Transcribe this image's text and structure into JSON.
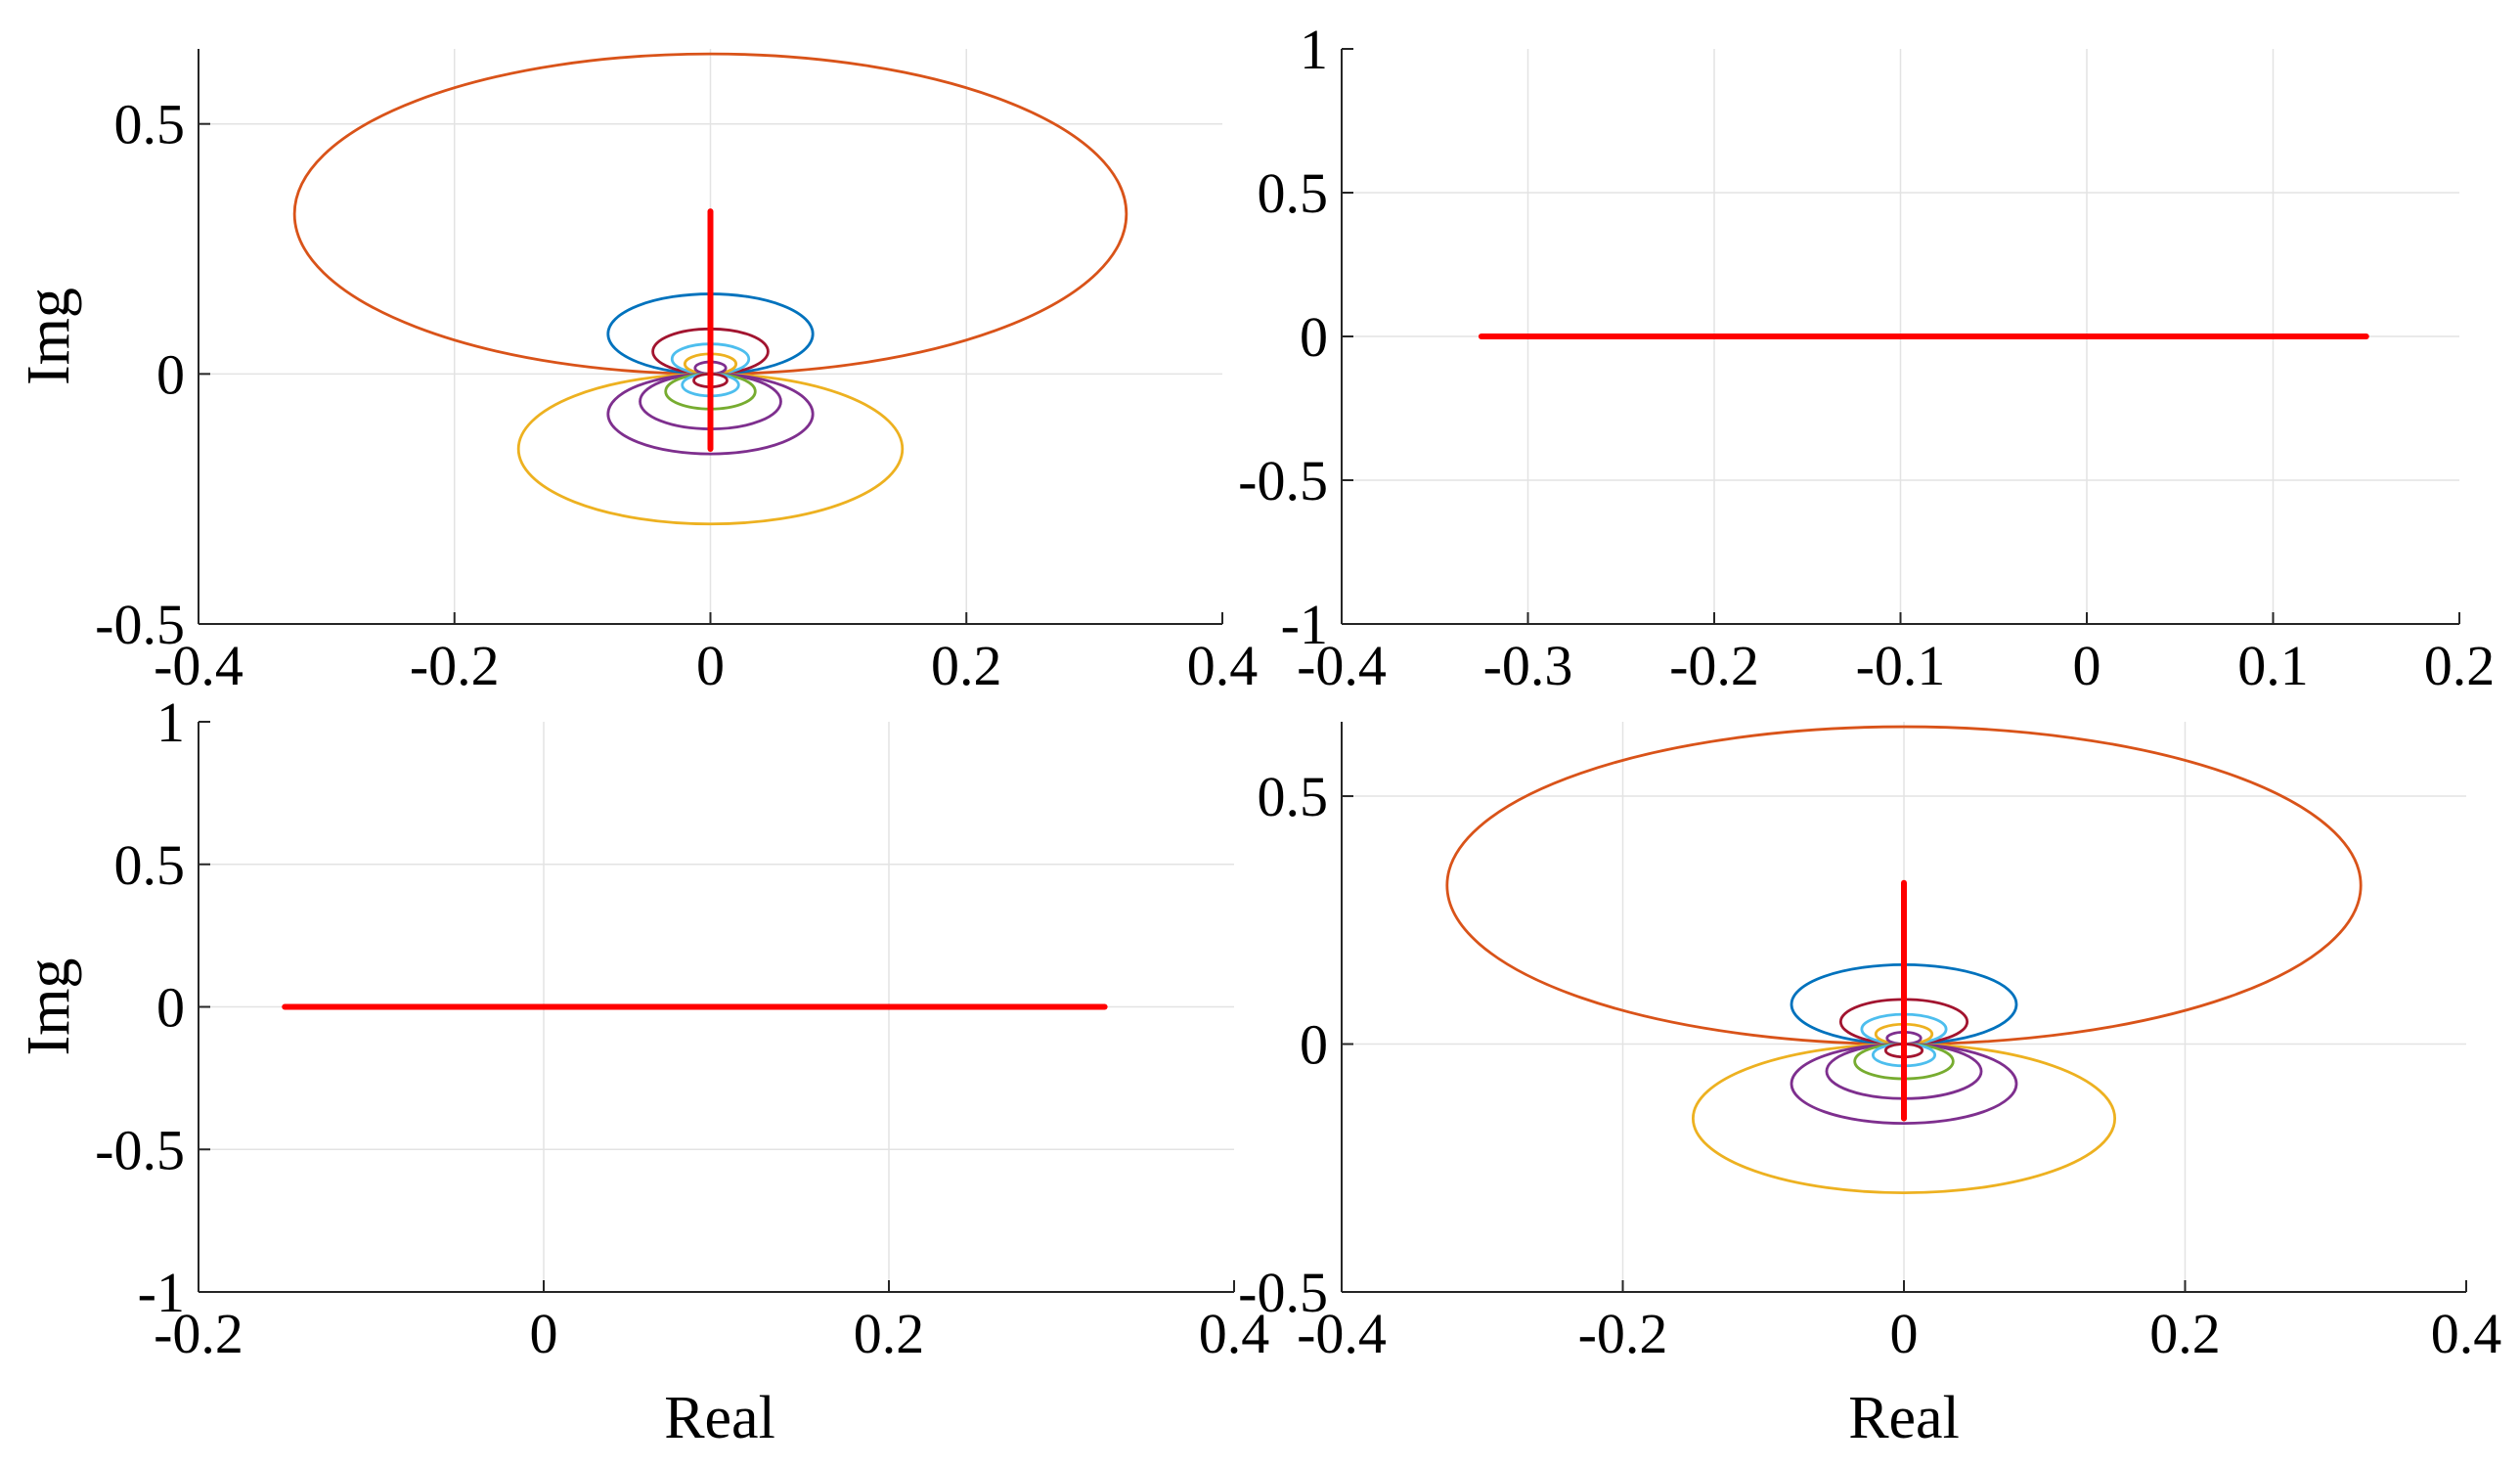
{
  "colors": {
    "frame": "#262626",
    "grid": "#e3e3e3",
    "locus_line": "#ff0000",
    "palette": [
      "#0072bd",
      "#d95319",
      "#edb120",
      "#7e2f8e",
      "#77ac30",
      "#4dbeee",
      "#a2142f"
    ]
  },
  "chart_data": [
    {
      "type": "line",
      "position": "top-left",
      "xlim": [
        -0.4,
        0.4
      ],
      "ylim": [
        -0.5,
        0.65
      ],
      "xticks": [
        -0.4,
        -0.2,
        0,
        0.2,
        0.4
      ],
      "xtick_labels": [
        "-0.4",
        "-0.2",
        "0",
        "0.2",
        "0.4"
      ],
      "yticks": [
        -0.5,
        0,
        0.5
      ],
      "ytick_labels": [
        "-0.5",
        "0",
        "0.5"
      ],
      "xlabel": "",
      "ylabel": "Img",
      "grid": true,
      "series": [
        {
          "name": "circle-upper-1",
          "kind": "ellipse",
          "center": [
            0,
            0.32
          ],
          "radii": [
            0.325,
            0.32
          ],
          "color": "#d95319"
        },
        {
          "name": "circle-upper-2",
          "kind": "ellipse",
          "center": [
            0,
            0.08
          ],
          "radii": [
            0.08,
            0.08
          ],
          "color": "#0072bd"
        },
        {
          "name": "circle-upper-3",
          "kind": "ellipse",
          "center": [
            0,
            0.045
          ],
          "radii": [
            0.045,
            0.045
          ],
          "color": "#a2142f"
        },
        {
          "name": "circle-upper-4",
          "kind": "ellipse",
          "center": [
            0,
            0.03
          ],
          "radii": [
            0.03,
            0.03
          ],
          "color": "#4dbeee"
        },
        {
          "name": "circle-upper-5",
          "kind": "ellipse",
          "center": [
            0,
            0.02
          ],
          "radii": [
            0.02,
            0.02
          ],
          "color": "#edb120"
        },
        {
          "name": "circle-upper-6",
          "kind": "ellipse",
          "center": [
            0,
            0.012
          ],
          "radii": [
            0.012,
            0.012
          ],
          "color": "#7e2f8e"
        },
        {
          "name": "circle-lower-1",
          "kind": "ellipse",
          "center": [
            0,
            -0.15
          ],
          "radii": [
            0.15,
            0.15
          ],
          "color": "#edb120"
        },
        {
          "name": "circle-lower-2",
          "kind": "ellipse",
          "center": [
            0,
            -0.08
          ],
          "radii": [
            0.08,
            0.08
          ],
          "color": "#7e2f8e"
        },
        {
          "name": "circle-lower-3",
          "kind": "ellipse",
          "center": [
            0,
            -0.055
          ],
          "radii": [
            0.055,
            0.055
          ],
          "color": "#7e2f8e"
        },
        {
          "name": "circle-lower-4",
          "kind": "ellipse",
          "center": [
            0,
            -0.035
          ],
          "radii": [
            0.035,
            0.035
          ],
          "color": "#77ac30"
        },
        {
          "name": "circle-lower-5",
          "kind": "ellipse",
          "center": [
            0,
            -0.022
          ],
          "radii": [
            0.022,
            0.022
          ],
          "color": "#4dbeee"
        },
        {
          "name": "circle-lower-6",
          "kind": "ellipse",
          "center": [
            0,
            -0.013
          ],
          "radii": [
            0.013,
            0.013
          ],
          "color": "#a2142f"
        },
        {
          "name": "locus",
          "kind": "line",
          "x": [
            0,
            0
          ],
          "y": [
            -0.15,
            0.325
          ],
          "color": "#ff0000",
          "bold": true
        }
      ]
    },
    {
      "type": "line",
      "position": "top-right",
      "xlim": [
        -0.4,
        0.2
      ],
      "ylim": [
        -1,
        1
      ],
      "xticks": [
        -0.4,
        -0.3,
        -0.2,
        -0.1,
        0,
        0.1,
        0.2
      ],
      "xtick_labels": [
        "-0.4",
        "-0.3",
        "-0.2",
        "-0.1",
        "0",
        "0.1",
        "0.2"
      ],
      "yticks": [
        -1,
        -0.5,
        0,
        0.5,
        1
      ],
      "ytick_labels": [
        "-1",
        "-0.5",
        "0",
        "0.5",
        "1"
      ],
      "xlabel": "",
      "ylabel": "",
      "grid": true,
      "series": [
        {
          "name": "locus",
          "kind": "line",
          "x": [
            -0.325,
            0.15
          ],
          "y": [
            0,
            0
          ],
          "color": "#ff0000",
          "bold": true
        }
      ]
    },
    {
      "type": "line",
      "position": "bottom-left",
      "xlim": [
        -0.2,
        0.4
      ],
      "ylim": [
        -1,
        1
      ],
      "xticks": [
        -0.2,
        0,
        0.2,
        0.4
      ],
      "xtick_labels": [
        "-0.2",
        "0",
        "0.2",
        "0.4"
      ],
      "yticks": [
        -1,
        -0.5,
        0,
        0.5,
        1
      ],
      "ytick_labels": [
        "-1",
        "-0.5",
        "0",
        "0.5",
        "1"
      ],
      "xlabel": "Real",
      "ylabel": "Img",
      "grid": true,
      "series": [
        {
          "name": "locus",
          "kind": "line",
          "x": [
            -0.15,
            0.325
          ],
          "y": [
            0,
            0
          ],
          "color": "#ff0000",
          "bold": true
        }
      ]
    },
    {
      "type": "line",
      "position": "bottom-right",
      "xlim": [
        -0.4,
        0.4
      ],
      "ylim": [
        -0.5,
        0.65
      ],
      "xticks": [
        -0.4,
        -0.2,
        0,
        0.2,
        0.4
      ],
      "xtick_labels": [
        "-0.4",
        "-0.2",
        "0",
        "0.2",
        "0.4"
      ],
      "yticks": [
        -0.5,
        0,
        0.5
      ],
      "ytick_labels": [
        "-0.5",
        "0",
        "0.5"
      ],
      "xlabel": "Real",
      "ylabel": "",
      "grid": true,
      "series": [
        {
          "name": "circle-upper-1",
          "kind": "ellipse",
          "center": [
            0,
            0.32
          ],
          "radii": [
            0.325,
            0.32
          ],
          "color": "#d95319"
        },
        {
          "name": "circle-upper-2",
          "kind": "ellipse",
          "center": [
            0,
            0.08
          ],
          "radii": [
            0.08,
            0.08
          ],
          "color": "#0072bd"
        },
        {
          "name": "circle-upper-3",
          "kind": "ellipse",
          "center": [
            0,
            0.045
          ],
          "radii": [
            0.045,
            0.045
          ],
          "color": "#a2142f"
        },
        {
          "name": "circle-upper-4",
          "kind": "ellipse",
          "center": [
            0,
            0.03
          ],
          "radii": [
            0.03,
            0.03
          ],
          "color": "#4dbeee"
        },
        {
          "name": "circle-upper-5",
          "kind": "ellipse",
          "center": [
            0,
            0.02
          ],
          "radii": [
            0.02,
            0.02
          ],
          "color": "#edb120"
        },
        {
          "name": "circle-upper-6",
          "kind": "ellipse",
          "center": [
            0,
            0.012
          ],
          "radii": [
            0.012,
            0.012
          ],
          "color": "#7e2f8e"
        },
        {
          "name": "circle-lower-1",
          "kind": "ellipse",
          "center": [
            0,
            -0.15
          ],
          "radii": [
            0.15,
            0.15
          ],
          "color": "#edb120"
        },
        {
          "name": "circle-lower-2",
          "kind": "ellipse",
          "center": [
            0,
            -0.08
          ],
          "radii": [
            0.08,
            0.08
          ],
          "color": "#7e2f8e"
        },
        {
          "name": "circle-lower-3",
          "kind": "ellipse",
          "center": [
            0,
            -0.055
          ],
          "radii": [
            0.055,
            0.055
          ],
          "color": "#7e2f8e"
        },
        {
          "name": "circle-lower-4",
          "kind": "ellipse",
          "center": [
            0,
            -0.035
          ],
          "radii": [
            0.035,
            0.035
          ],
          "color": "#77ac30"
        },
        {
          "name": "circle-lower-5",
          "kind": "ellipse",
          "center": [
            0,
            -0.022
          ],
          "radii": [
            0.022,
            0.022
          ],
          "color": "#4dbeee"
        },
        {
          "name": "circle-lower-6",
          "kind": "ellipse",
          "center": [
            0,
            -0.013
          ],
          "radii": [
            0.013,
            0.013
          ],
          "color": "#a2142f"
        },
        {
          "name": "locus",
          "kind": "line",
          "x": [
            0,
            0
          ],
          "y": [
            -0.15,
            0.325
          ],
          "color": "#ff0000",
          "bold": true
        }
      ]
    }
  ]
}
